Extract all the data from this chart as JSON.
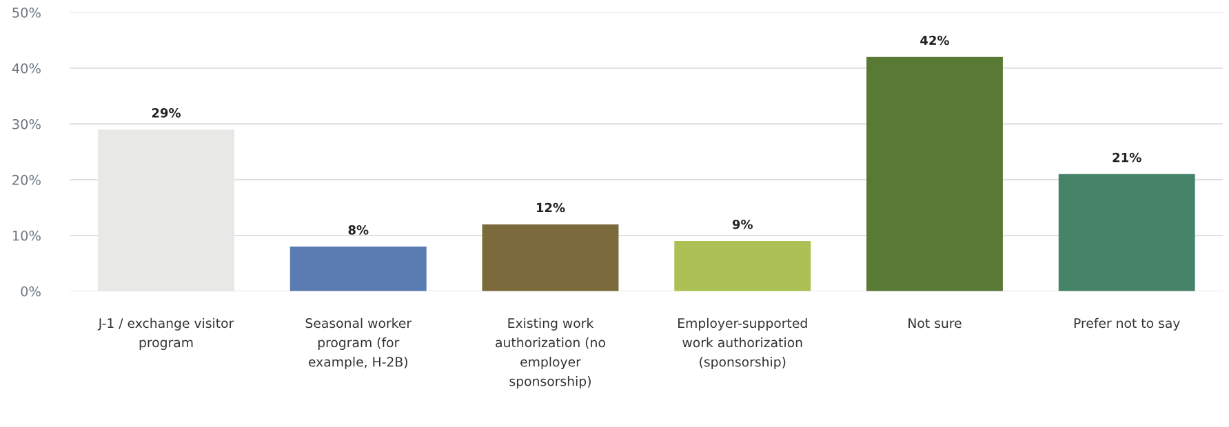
{
  "chart_data": {
    "type": "bar",
    "categories": [
      "J-1 / exchange visitor\nprogram",
      "Seasonal worker\nprogram (for\nexample, H-2B)",
      "Existing work\nauthorization (no\nemployer\nsponsorship)",
      "Employer-supported\nwork authorization\n(sponsorship)",
      "Not sure",
      "Prefer not to say"
    ],
    "values": [
      29,
      8,
      12,
      9,
      42,
      21
    ],
    "colors": [
      "#e8e8e6",
      "#5b7bb3",
      "#7a6a3c",
      "#abc155",
      "#587a35",
      "#46846a"
    ],
    "value_labels": [
      "29%",
      "8%",
      "12%",
      "9%",
      "42%",
      "21%"
    ],
    "ylim": [
      0,
      50
    ],
    "yticks": [
      {
        "value": 0,
        "label": "0%"
      },
      {
        "value": 10,
        "label": "10%"
      },
      {
        "value": 20,
        "label": "20%"
      },
      {
        "value": 30,
        "label": "30%"
      },
      {
        "value": 40,
        "label": "40%"
      },
      {
        "value": 50,
        "label": "50%"
      }
    ],
    "grid": "y"
  }
}
